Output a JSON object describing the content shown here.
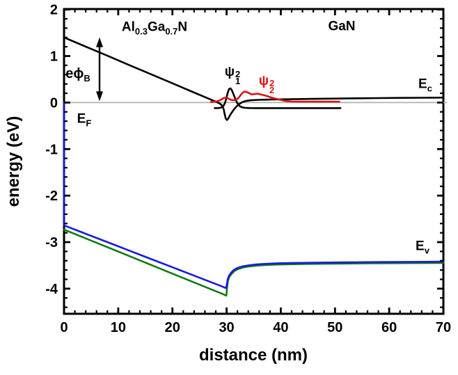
{
  "chart_data": {
    "type": "line",
    "title": "",
    "xlabel": "distance (nm)",
    "ylabel": "energy (eV)",
    "xlim": [
      0,
      70
    ],
    "ylim": [
      -4.54,
      2.01
    ],
    "x_major_ticks": [
      0,
      10,
      20,
      30,
      40,
      50,
      60,
      70
    ],
    "x_minor_step": 2,
    "y_major_ticks": [
      -4,
      -3,
      -2,
      -1,
      0,
      1,
      2
    ],
    "y_minor_step": 0.2,
    "grid": false,
    "legend": "none",
    "frame_color": "#000000",
    "series": [
      {
        "name": "fermi-level",
        "color": "#b0b0b0",
        "width": 1.8,
        "points": [
          [
            0,
            0
          ],
          [
            70.6,
            0
          ]
        ]
      },
      {
        "name": "valence-band-light-green",
        "color": "#0e7a12",
        "width": 2.6,
        "points": [
          [
            0,
            -2.73
          ],
          [
            5,
            -2.967
          ],
          [
            10,
            -3.203
          ],
          [
            15,
            -3.44
          ],
          [
            20,
            -3.677
          ],
          [
            25,
            -3.913
          ],
          [
            28,
            -4.055
          ],
          [
            29.5,
            -4.126
          ],
          [
            29.95,
            -4.15
          ],
          [
            30.1,
            -3.95
          ],
          [
            30.25,
            -3.83
          ],
          [
            30.5,
            -3.745
          ],
          [
            30.9,
            -3.685
          ],
          [
            31.4,
            -3.625
          ],
          [
            32.1,
            -3.578
          ],
          [
            33,
            -3.545
          ],
          [
            34,
            -3.525
          ],
          [
            35.5,
            -3.505
          ],
          [
            37,
            -3.493
          ],
          [
            39,
            -3.483
          ],
          [
            41,
            -3.477
          ],
          [
            44,
            -3.47
          ],
          [
            48,
            -3.465
          ],
          [
            52,
            -3.46
          ],
          [
            56,
            -3.455
          ],
          [
            60,
            -3.453
          ],
          [
            65,
            -3.45
          ],
          [
            70,
            -3.447
          ]
        ]
      },
      {
        "name": "valence-band-heavy-blue",
        "color": "#1a1ae0",
        "width": 2.6,
        "points": [
          [
            0,
            0
          ],
          [
            0,
            -2.64
          ],
          [
            3,
            -2.775
          ],
          [
            6,
            -2.91
          ],
          [
            9,
            -3.045
          ],
          [
            12,
            -3.18
          ],
          [
            15,
            -3.315
          ],
          [
            18,
            -3.45
          ],
          [
            21,
            -3.585
          ],
          [
            24,
            -3.72
          ],
          [
            27,
            -3.855
          ],
          [
            29,
            -3.945
          ],
          [
            29.9,
            -3.99
          ],
          [
            30.05,
            -3.9
          ],
          [
            30.2,
            -3.8
          ],
          [
            30.45,
            -3.72
          ],
          [
            30.8,
            -3.66
          ],
          [
            31.3,
            -3.6
          ],
          [
            32,
            -3.555
          ],
          [
            33,
            -3.52
          ],
          [
            34,
            -3.5
          ],
          [
            35.5,
            -3.48
          ],
          [
            37,
            -3.468
          ],
          [
            39,
            -3.458
          ],
          [
            41,
            -3.452
          ],
          [
            44,
            -3.445
          ],
          [
            48,
            -3.44
          ],
          [
            52,
            -3.435
          ],
          [
            56,
            -3.43
          ],
          [
            60,
            -3.428
          ],
          [
            65,
            -3.424
          ],
          [
            70,
            -3.42
          ]
        ]
      },
      {
        "name": "conduction-band",
        "color": "#000000",
        "width": 2.6,
        "points": [
          [
            0,
            1.4
          ],
          [
            4,
            1.203
          ],
          [
            8,
            1.006
          ],
          [
            12,
            0.808
          ],
          [
            16,
            0.611
          ],
          [
            20,
            0.414
          ],
          [
            24,
            0.216
          ],
          [
            26.5,
            0.093
          ],
          [
            28,
            0.019
          ],
          [
            28.8,
            -0.025
          ],
          [
            29.2,
            -0.07
          ],
          [
            29.45,
            -0.14
          ],
          [
            29.65,
            -0.25
          ],
          [
            29.85,
            -0.345
          ],
          [
            30.05,
            -0.375
          ],
          [
            30.3,
            -0.345
          ],
          [
            30.6,
            -0.28
          ],
          [
            31,
            -0.205
          ],
          [
            31.4,
            -0.14
          ],
          [
            31.9,
            -0.075
          ],
          [
            32.4,
            -0.025
          ],
          [
            33,
            0.015
          ],
          [
            33.7,
            0.038
          ],
          [
            34.5,
            0.05
          ],
          [
            36,
            0.058
          ],
          [
            38,
            0.064
          ],
          [
            40,
            0.069
          ],
          [
            43,
            0.075
          ],
          [
            46,
            0.08
          ],
          [
            50,
            0.086
          ],
          [
            54,
            0.091
          ],
          [
            58,
            0.096
          ],
          [
            62,
            0.1
          ],
          [
            66,
            0.103
          ],
          [
            70,
            0.106
          ]
        ]
      },
      {
        "name": "psi1-squared",
        "color": "#000000",
        "width": 2.6,
        "points": [
          [
            27.8,
            -0.12
          ],
          [
            28.5,
            -0.118
          ],
          [
            29,
            -0.108
          ],
          [
            29.4,
            -0.075
          ],
          [
            29.7,
            -0.01
          ],
          [
            29.95,
            0.09
          ],
          [
            30.2,
            0.21
          ],
          [
            30.45,
            0.29
          ],
          [
            30.7,
            0.305
          ],
          [
            30.95,
            0.27
          ],
          [
            31.25,
            0.185
          ],
          [
            31.6,
            0.08
          ],
          [
            31.95,
            -0.01
          ],
          [
            32.35,
            -0.07
          ],
          [
            32.8,
            -0.1
          ],
          [
            33.4,
            -0.113
          ],
          [
            34.2,
            -0.118
          ],
          [
            35.5,
            -0.12
          ],
          [
            38,
            -0.12
          ],
          [
            42,
            -0.12
          ],
          [
            46,
            -0.12
          ],
          [
            51,
            -0.12
          ]
        ]
      },
      {
        "name": "psi2-squared",
        "color": "#e01212",
        "width": 2.6,
        "points": [
          [
            27.1,
            0.012
          ],
          [
            27.9,
            0.02
          ],
          [
            28.5,
            0.035
          ],
          [
            29,
            0.065
          ],
          [
            29.4,
            0.095
          ],
          [
            29.75,
            0.107
          ],
          [
            30.1,
            0.098
          ],
          [
            30.5,
            0.075
          ],
          [
            30.9,
            0.055
          ],
          [
            31.3,
            0.048
          ],
          [
            31.75,
            0.058
          ],
          [
            32.2,
            0.1
          ],
          [
            32.6,
            0.16
          ],
          [
            33,
            0.215
          ],
          [
            33.3,
            0.235
          ],
          [
            33.7,
            0.228
          ],
          [
            34.1,
            0.205
          ],
          [
            34.6,
            0.175
          ],
          [
            35.7,
            0.19
          ],
          [
            37,
            0.155
          ],
          [
            38.3,
            0.108
          ],
          [
            39.6,
            0.067
          ],
          [
            40.8,
            0.035
          ],
          [
            42.1,
            0.022
          ],
          [
            43.5,
            0.02
          ],
          [
            46,
            0.02
          ],
          [
            48.5,
            0.02
          ],
          [
            50.8,
            0.02
          ]
        ]
      }
    ],
    "arrow": {
      "name": "barrier-height-arrow",
      "x": 6.55,
      "y_from": 0.03,
      "y_to": 1.4,
      "color": "#000000"
    },
    "labels": {
      "material_left": {
        "p1": "Al",
        "s1": "0.3",
        "p2": "Ga",
        "s2": "0.7",
        "p3": "N"
      },
      "material_right": "GaN",
      "barrier": {
        "main": "eϕ",
        "sub": "B"
      },
      "fermi": {
        "main": "E",
        "sub": "F"
      },
      "conduction": {
        "main": "E",
        "sub": "c"
      },
      "valence": {
        "main": "E",
        "sub": "v"
      },
      "psi1": {
        "base": "ψ",
        "sup": "2",
        "sub": "1"
      },
      "psi2": {
        "base": "ψ",
        "sup": "2",
        "sub": "2"
      }
    },
    "colors": {
      "accent_red": "#e01212",
      "accent_blue": "#1a1ae0",
      "accent_green": "#0e7a12",
      "fermi_gray": "#b0b0b0"
    }
  }
}
